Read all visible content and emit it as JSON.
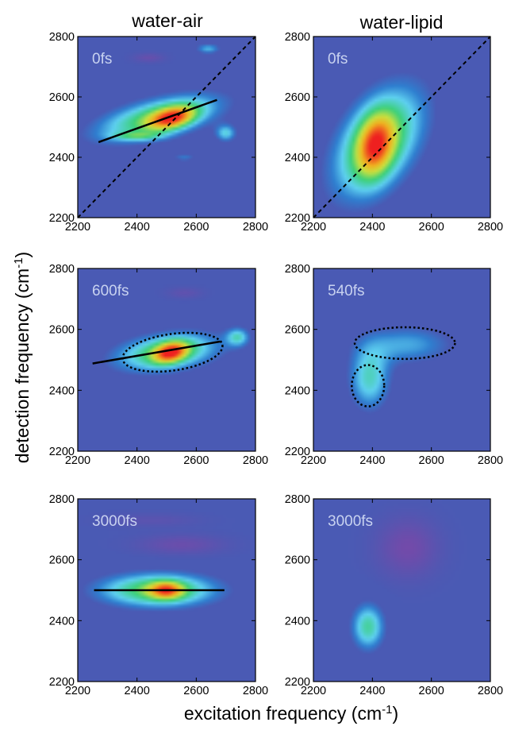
{
  "figure": {
    "column_titles": [
      "water-air",
      "water-lipid"
    ],
    "xlabel": "excitation frequency (cm",
    "xlabel_sup": "-1",
    "xlabel_end": ")",
    "ylabel": "detection frequency (cm",
    "ylabel_sup": "-1",
    "ylabel_end": ")"
  },
  "colors": {
    "background_level": "#4a5ab4",
    "colormap": [
      "#3b3ea6",
      "#4a5ab4",
      "#2f7fd0",
      "#5ed0f0",
      "#3cd07a",
      "#c8e040",
      "#f0b020",
      "#ee2020"
    ],
    "negative_feature": "#7a48a8",
    "time_label": "#c8d2f0"
  },
  "chart_data": [
    {
      "type": "heatmap",
      "title": "water-air",
      "panel_label": "0fs",
      "xlim": [
        2200,
        2800
      ],
      "ylim": [
        2200,
        2800
      ],
      "xticks": [
        2200,
        2400,
        2600,
        2800
      ],
      "yticks": [
        2200,
        2400,
        2600,
        2800
      ],
      "features": [
        {
          "cx": 2470,
          "cy": 2530,
          "sx": 150,
          "sy": 55,
          "rho": 0.55,
          "amp": 0.55
        },
        {
          "cx": 2520,
          "cy": 2530,
          "sx": 55,
          "sy": 28,
          "rho": 0.4,
          "amp": 0.55
        },
        {
          "cx": 2700,
          "cy": 2480,
          "sx": 25,
          "sy": 20,
          "rho": 0,
          "amp": 0.35
        },
        {
          "cx": 2640,
          "cy": 2760,
          "sx": 30,
          "sy": 12,
          "rho": 0,
          "amp": 0.3
        },
        {
          "cx": 2400,
          "cy": 2470,
          "sx": 60,
          "sy": 10,
          "rho": 0,
          "amp": 0.25
        },
        {
          "cx": 2560,
          "cy": 2400,
          "sx": 30,
          "sy": 10,
          "rho": 0,
          "amp": 0.2
        },
        {
          "cx": 2440,
          "cy": 2730,
          "sx": 35,
          "sy": 10,
          "rho": 0,
          "amp": -0.2
        }
      ],
      "diagonal": true,
      "lines": [
        {
          "x1": 2270,
          "y1": 2450,
          "x2": 2670,
          "y2": 2590
        }
      ],
      "ellipses": []
    },
    {
      "type": "heatmap",
      "title": "water-lipid",
      "panel_label": "0fs",
      "xlim": [
        2200,
        2800
      ],
      "ylim": [
        2200,
        2800
      ],
      "xticks": [
        2200,
        2400,
        2600,
        2800
      ],
      "yticks": [
        2200,
        2400,
        2600,
        2800
      ],
      "features": [
        {
          "cx": 2420,
          "cy": 2450,
          "sx": 110,
          "sy": 130,
          "rho": 0.45,
          "amp": 0.6
        },
        {
          "cx": 2410,
          "cy": 2440,
          "sx": 45,
          "sy": 75,
          "rho": 0.2,
          "amp": 0.45
        }
      ],
      "diagonal": true,
      "lines": [],
      "ellipses": []
    },
    {
      "type": "heatmap",
      "title": "",
      "panel_label": "600fs",
      "xlim": [
        2200,
        2800
      ],
      "ylim": [
        2200,
        2800
      ],
      "xticks": [
        2200,
        2400,
        2600,
        2800
      ],
      "yticks": [
        2200,
        2400,
        2600,
        2800
      ],
      "features": [
        {
          "cx": 2500,
          "cy": 2525,
          "sx": 125,
          "sy": 45,
          "rho": 0.3,
          "amp": 0.55
        },
        {
          "cx": 2515,
          "cy": 2525,
          "sx": 40,
          "sy": 25,
          "rho": 0.3,
          "amp": 0.55
        },
        {
          "cx": 2740,
          "cy": 2575,
          "sx": 28,
          "sy": 22,
          "rho": 0,
          "amp": 0.35
        },
        {
          "cx": 2420,
          "cy": 2350,
          "sx": 30,
          "sy": 10,
          "rho": 0,
          "amp": 0.12
        },
        {
          "cx": 2560,
          "cy": 2720,
          "sx": 40,
          "sy": 12,
          "rho": 0,
          "amp": -0.15
        }
      ],
      "diagonal": false,
      "lines": [
        {
          "x1": 2250,
          "y1": 2488,
          "x2": 2680,
          "y2": 2560
        }
      ],
      "ellipses": [
        {
          "cx": 2520,
          "cy": 2525,
          "rx": 170,
          "ry": 60,
          "angle": 8
        }
      ]
    },
    {
      "type": "heatmap",
      "title": "",
      "panel_label": "540fs",
      "xlim": [
        2200,
        2800
      ],
      "ylim": [
        2200,
        2800
      ],
      "xticks": [
        2200,
        2400,
        2600,
        2800
      ],
      "yticks": [
        2200,
        2400,
        2600,
        2800
      ],
      "features": [
        {
          "cx": 2390,
          "cy": 2440,
          "sx": 50,
          "sy": 75,
          "rho": 0,
          "amp": 0.4
        },
        {
          "cx": 2520,
          "cy": 2550,
          "sx": 110,
          "sy": 45,
          "rho": 0,
          "amp": 0.28
        }
      ],
      "diagonal": false,
      "lines": [],
      "ellipses": [
        {
          "cx": 2510,
          "cy": 2555,
          "rx": 170,
          "ry": 52,
          "angle": 0
        },
        {
          "cx": 2385,
          "cy": 2415,
          "rx": 55,
          "ry": 68,
          "angle": 0
        }
      ]
    },
    {
      "type": "heatmap",
      "title": "",
      "panel_label": "3000fs",
      "xlim": [
        2200,
        2800
      ],
      "ylim": [
        2200,
        2800
      ],
      "xticks": [
        2200,
        2400,
        2600,
        2800
      ],
      "yticks": [
        2200,
        2400,
        2600,
        2800
      ],
      "features": [
        {
          "cx": 2470,
          "cy": 2500,
          "sx": 145,
          "sy": 40,
          "rho": 0,
          "amp": 0.58
        },
        {
          "cx": 2500,
          "cy": 2500,
          "sx": 40,
          "sy": 20,
          "rho": 0,
          "amp": 0.45
        },
        {
          "cx": 2550,
          "cy": 2650,
          "sx": 100,
          "sy": 22,
          "rho": 0,
          "amp": -0.22
        },
        {
          "cx": 2450,
          "cy": 2730,
          "sx": 110,
          "sy": 15,
          "rho": 0,
          "amp": -0.12
        }
      ],
      "diagonal": false,
      "lines": [
        {
          "x1": 2255,
          "y1": 2500,
          "x2": 2695,
          "y2": 2500
        }
      ],
      "ellipses": []
    },
    {
      "type": "heatmap",
      "title": "",
      "panel_label": "3000fs",
      "xlim": [
        2200,
        2800
      ],
      "ylim": [
        2200,
        2800
      ],
      "xticks": [
        2200,
        2400,
        2600,
        2800
      ],
      "yticks": [
        2200,
        2400,
        2600,
        2800
      ],
      "features": [
        {
          "cx": 2385,
          "cy": 2380,
          "sx": 40,
          "sy": 55,
          "rho": 0,
          "amp": 0.45
        },
        {
          "cx": 2520,
          "cy": 2640,
          "sx": 70,
          "sy": 65,
          "rho": 0,
          "amp": -0.28
        }
      ],
      "diagonal": false,
      "lines": [],
      "ellipses": []
    }
  ]
}
